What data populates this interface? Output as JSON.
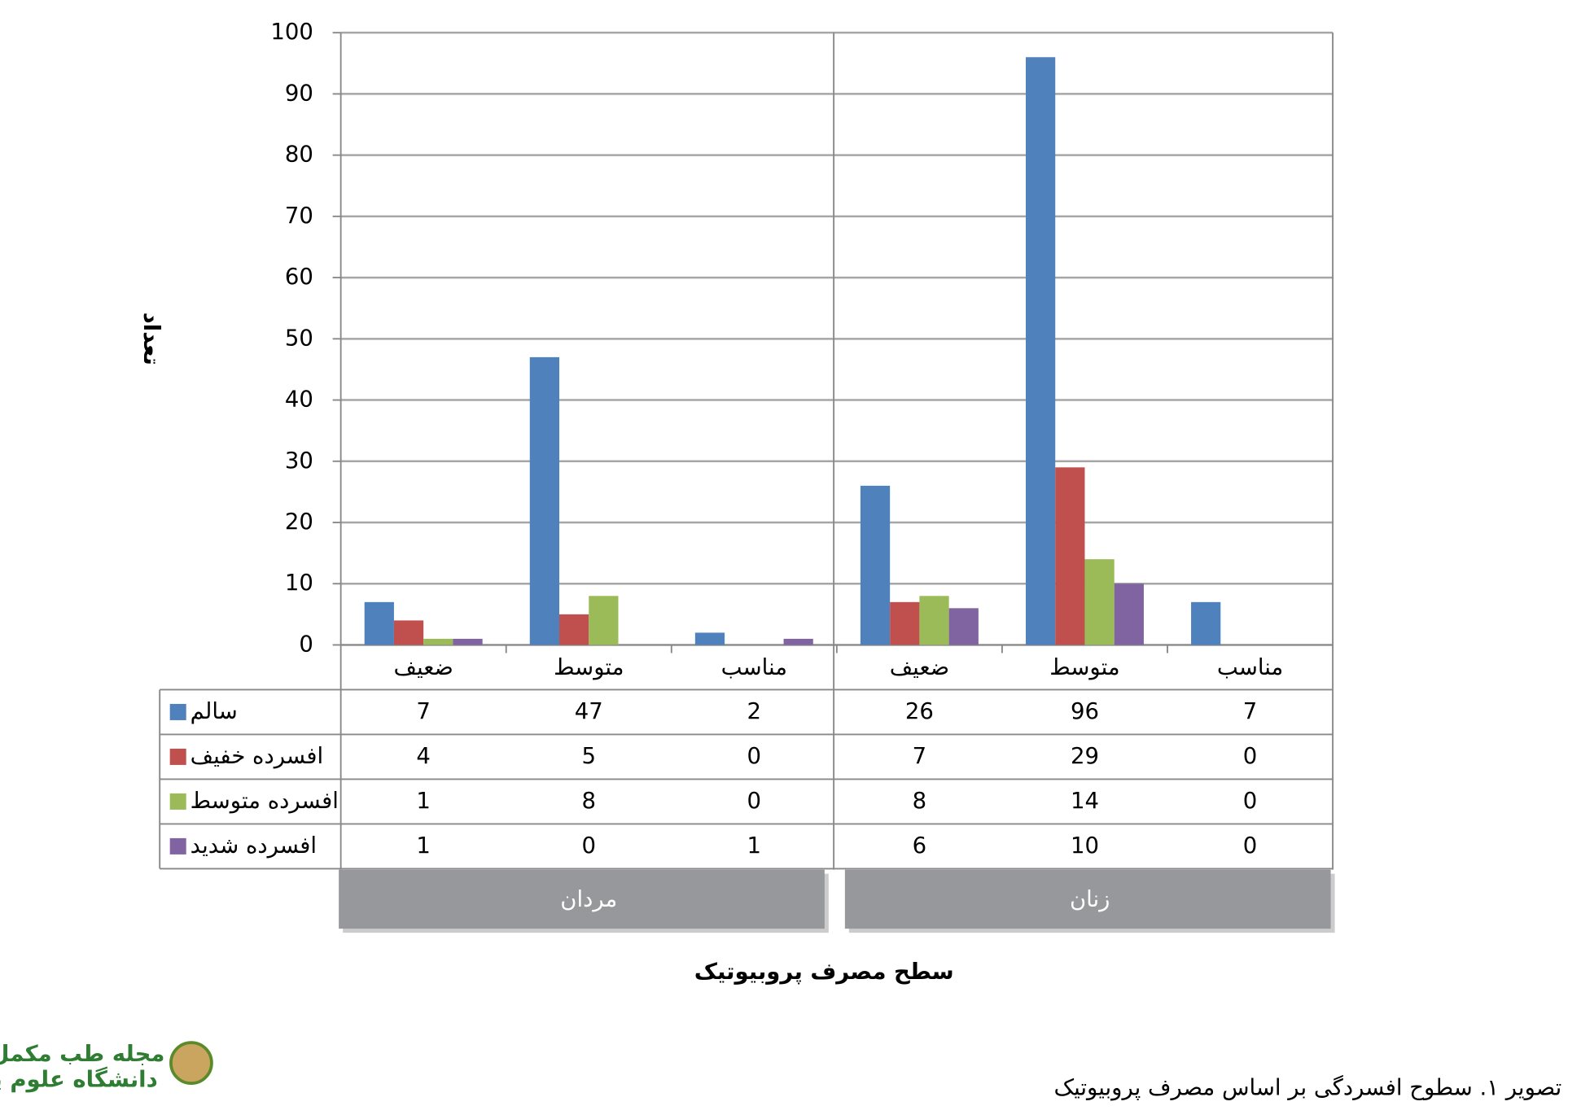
{
  "chart_data": {
    "type": "bar",
    "ylabel": "تعداد",
    "xlabel": "سطح مصرف پروبیوتیک",
    "categories": [
      "ضعیف",
      "متوسط",
      "مناسب",
      "ضعیف",
      "متوسط",
      "مناسب"
    ],
    "groups": [
      "مردان",
      "زنان"
    ],
    "series": [
      {
        "name": "سالم",
        "color": "#4f81bd",
        "values": [
          7,
          47,
          2,
          26,
          96,
          7
        ]
      },
      {
        "name": "افسرده خفیف",
        "color": "#c0504d",
        "values": [
          4,
          5,
          0,
          7,
          29,
          0
        ]
      },
      {
        "name": "افسرده متوسط",
        "color": "#9bbb59",
        "values": [
          1,
          8,
          0,
          8,
          14,
          0
        ]
      },
      {
        "name": "افسرده شدید",
        "color": "#8064a2",
        "values": [
          1,
          0,
          1,
          6,
          10,
          0
        ]
      }
    ],
    "ylim": [
      0,
      100
    ],
    "yticks": [
      0,
      10,
      20,
      30,
      40,
      50,
      60,
      70,
      80,
      90,
      100
    ],
    "grid": true
  },
  "caption": "تصویر ۱. سطوح افسردگی بر اساس مصرف پروبیوتیک",
  "logo": {
    "title": "مجله طب مکمل",
    "subtitle": "دانشگاه علوم پزشکی اراک"
  }
}
